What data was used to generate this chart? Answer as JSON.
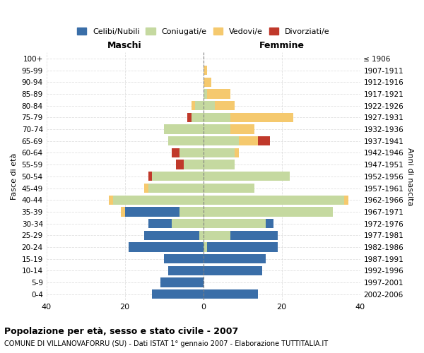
{
  "age_groups": [
    "0-4",
    "5-9",
    "10-14",
    "15-19",
    "20-24",
    "25-29",
    "30-34",
    "35-39",
    "40-44",
    "45-49",
    "50-54",
    "55-59",
    "60-64",
    "65-69",
    "70-74",
    "75-79",
    "80-84",
    "85-89",
    "90-94",
    "95-99",
    "100+"
  ],
  "birth_years": [
    "2002-2006",
    "1997-2001",
    "1992-1996",
    "1987-1991",
    "1982-1986",
    "1977-1981",
    "1972-1976",
    "1967-1971",
    "1962-1966",
    "1957-1961",
    "1952-1956",
    "1947-1951",
    "1942-1946",
    "1937-1941",
    "1932-1936",
    "1927-1931",
    "1922-1926",
    "1917-1921",
    "1912-1916",
    "1907-1911",
    "≤ 1906"
  ],
  "male": {
    "celibi": [
      13,
      11,
      9,
      10,
      19,
      14,
      6,
      14,
      0,
      0,
      0,
      0,
      0,
      0,
      0,
      0,
      0,
      0,
      0,
      0,
      0
    ],
    "coniugati": [
      0,
      0,
      0,
      0,
      0,
      1,
      8,
      6,
      23,
      14,
      13,
      5,
      6,
      9,
      10,
      3,
      2,
      0,
      0,
      0,
      0
    ],
    "vedovi": [
      0,
      0,
      0,
      0,
      0,
      0,
      0,
      1,
      1,
      1,
      0,
      0,
      0,
      0,
      0,
      0,
      1,
      0,
      0,
      0,
      0
    ],
    "divorziati": [
      0,
      0,
      0,
      0,
      0,
      0,
      0,
      0,
      0,
      0,
      1,
      2,
      2,
      0,
      0,
      1,
      0,
      0,
      0,
      0,
      0
    ]
  },
  "female": {
    "nubili": [
      14,
      0,
      15,
      16,
      18,
      12,
      2,
      0,
      0,
      0,
      0,
      0,
      0,
      0,
      0,
      0,
      0,
      0,
      0,
      0,
      0
    ],
    "coniugate": [
      0,
      0,
      0,
      0,
      1,
      7,
      16,
      33,
      36,
      13,
      22,
      8,
      8,
      9,
      7,
      7,
      3,
      1,
      0,
      0,
      0
    ],
    "vedove": [
      0,
      0,
      0,
      0,
      0,
      0,
      0,
      0,
      1,
      0,
      0,
      0,
      1,
      5,
      6,
      16,
      5,
      6,
      2,
      1,
      0
    ],
    "divorziate": [
      0,
      0,
      0,
      0,
      0,
      0,
      0,
      0,
      0,
      0,
      0,
      0,
      0,
      3,
      0,
      0,
      0,
      0,
      0,
      0,
      0
    ]
  },
  "colors": {
    "celibi_nubili": "#3a6ea8",
    "coniugati": "#c5d9a0",
    "vedovi": "#f5c96e",
    "divorziati": "#c0392b"
  },
  "title1": "Popolazione per età, sesso e stato civile - 2007",
  "title2": "COMUNE DI VILLANOVAFORRU (SU) - Dati ISTAT 1° gennaio 2007 - Elaborazione TUTTITALIA.IT",
  "xlabel_left": "Maschi",
  "xlabel_right": "Femmine",
  "ylabel_left": "Fasce di età",
  "ylabel_right": "Anni di nascita",
  "xlim": 40,
  "legend_labels": [
    "Celibi/Nubili",
    "Coniugati/e",
    "Vedovi/e",
    "Divorziati/e"
  ]
}
